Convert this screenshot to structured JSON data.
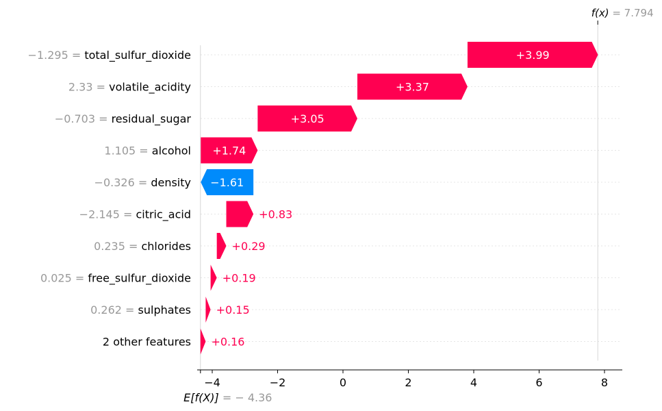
{
  "chart_data": {
    "type": "waterfall",
    "base_value": -4.36,
    "base_label_prefix": "E[f(X)] = ",
    "base_label_value": "−4.36",
    "output_value": 7.794,
    "output_label_prefix": "f(x) = ",
    "output_label_value": "7.794",
    "xlim": [
      -4.36,
      8.5
    ],
    "xticks": [
      -4,
      -2,
      0,
      2,
      4,
      6,
      8
    ],
    "xtick_labels": [
      "−4",
      "−2",
      "0",
      "2",
      "4",
      "6",
      "8"
    ],
    "features": [
      {
        "name": "total_sulfur_dioxide",
        "value": "−1.295",
        "contribution": 3.99,
        "label": "+3.99"
      },
      {
        "name": "volatile_acidity",
        "value": "2.33",
        "contribution": 3.37,
        "label": "+3.37"
      },
      {
        "name": "residual_sugar",
        "value": "−0.703",
        "contribution": 3.05,
        "label": "+3.05"
      },
      {
        "name": "alcohol",
        "value": "1.105",
        "contribution": 1.74,
        "label": "+1.74"
      },
      {
        "name": "density",
        "value": "−0.326",
        "contribution": -1.61,
        "label": "−1.61"
      },
      {
        "name": "citric_acid",
        "value": "−2.145",
        "contribution": 0.83,
        "label": "+0.83"
      },
      {
        "name": "chlorides",
        "value": "0.235",
        "contribution": 0.29,
        "label": "+0.29"
      },
      {
        "name": "free_sulfur_dioxide",
        "value": "0.025",
        "contribution": 0.19,
        "label": "+0.19"
      },
      {
        "name": "sulphates",
        "value": "0.262",
        "contribution": 0.15,
        "label": "+0.15"
      },
      {
        "name": "2 other features",
        "value": "",
        "contribution": 0.16,
        "label": "+0.16"
      }
    ],
    "colors": {
      "positive": "#ff0051",
      "negative": "#008bfb",
      "value_text": "#999999",
      "grid": "#cccccc"
    }
  }
}
